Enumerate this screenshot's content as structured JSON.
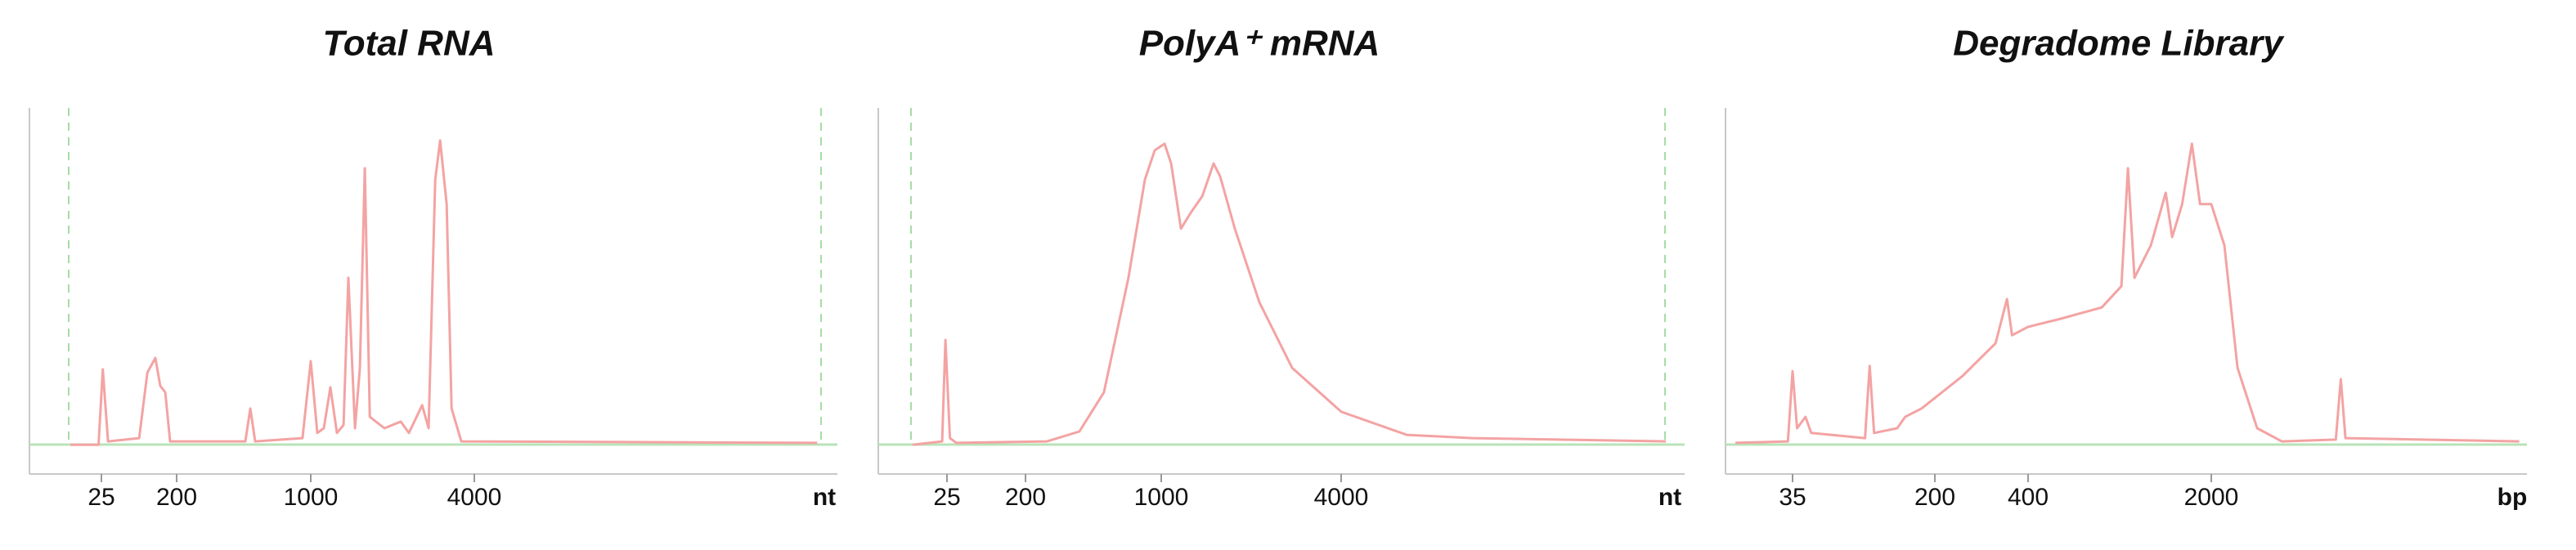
{
  "chart_data": [
    {
      "type": "line",
      "title": "Total RNA",
      "x_label": "nt",
      "color": "#f4a3a3",
      "x": [
        10,
        23,
        26,
        30,
        71,
        89,
        111,
        127,
        146,
        167,
        456,
        484,
        513,
        906,
        1000,
        1057,
        1117,
        1181,
        1248,
        1320,
        1376,
        1455,
        1517,
        1581,
        1649,
        1868,
        2145,
        2298,
        2570,
        2716,
        2871,
        2993,
        3164,
        3299,
        3583,
        75700
      ],
      "values": [
        8.0,
        8.0,
        28.6,
        8.9,
        9.8,
        27.7,
        31.7,
        24.1,
        22.3,
        8.9,
        8.9,
        17.9,
        8.9,
        9.8,
        30.8,
        11.2,
        12.5,
        23.7,
        11.2,
        13.4,
        53.6,
        12.5,
        29.0,
        83.5,
        15.6,
        12.5,
        14.3,
        11.2,
        18.8,
        12.5,
        80.4,
        91.1,
        73.7,
        17.9,
        8.9,
        8.5
      ],
      "xlim": [
        3,
        90000
      ],
      "xticks": [
        25,
        200,
        1000,
        4000
      ],
      "ylim": [
        0,
        100
      ]
    },
    {
      "type": "line",
      "title": "PolyA⁺ mRNA",
      "x_label": "nt",
      "color": "#f4a3a3",
      "x": [
        10,
        22,
        24,
        27,
        32,
        258,
        379,
        507,
        678,
        824,
        925,
        1026,
        1079,
        1164,
        1256,
        1372,
        1497,
        1574,
        1763,
        2130,
        2740,
        4000,
        6620,
        10960,
        48500
      ],
      "values": [
        8.0,
        8.9,
        36.6,
        9.8,
        8.5,
        8.9,
        11.6,
        22.3,
        53.6,
        80.4,
        88.4,
        90.2,
        84.8,
        67.0,
        71.4,
        75.9,
        84.8,
        81.3,
        67.0,
        46.9,
        29.0,
        17.0,
        10.7,
        9.8,
        8.9
      ],
      "xlim": [
        4,
        56000
      ],
      "xticks": [
        25,
        200,
        1000,
        4000
      ],
      "ylim": [
        0,
        100
      ]
    },
    {
      "type": "line",
      "title": "Degradome Library",
      "x_label": "bp",
      "color": "#f4a3a3",
      "x": [
        17,
        33,
        35,
        37,
        41,
        44,
        85,
        90,
        95,
        126,
        139,
        170,
        246,
        314,
        342,
        355,
        400,
        533,
        764,
        908,
        962,
        1019,
        1177,
        1340,
        1419,
        1549,
        1687,
        1813,
        2000,
        2244,
        2518,
        2992,
        3714,
        5970,
        6240,
        6500,
        29900
      ],
      "values": [
        8.5,
        8.9,
        28.1,
        12.5,
        15.6,
        11.2,
        9.8,
        29.5,
        11.2,
        12.5,
        15.6,
        17.9,
        26.8,
        35.7,
        47.8,
        37.9,
        40.2,
        42.4,
        45.5,
        51.3,
        83.5,
        53.6,
        62.5,
        76.8,
        64.7,
        73.7,
        90.2,
        73.7,
        73.7,
        62.5,
        29.0,
        12.5,
        8.9,
        9.4,
        25.9,
        9.8,
        8.9
      ],
      "xlim": [
        15,
        32000
      ],
      "xticks": [
        35,
        200,
        400,
        2000
      ],
      "ylim": [
        0,
        100
      ]
    }
  ]
}
